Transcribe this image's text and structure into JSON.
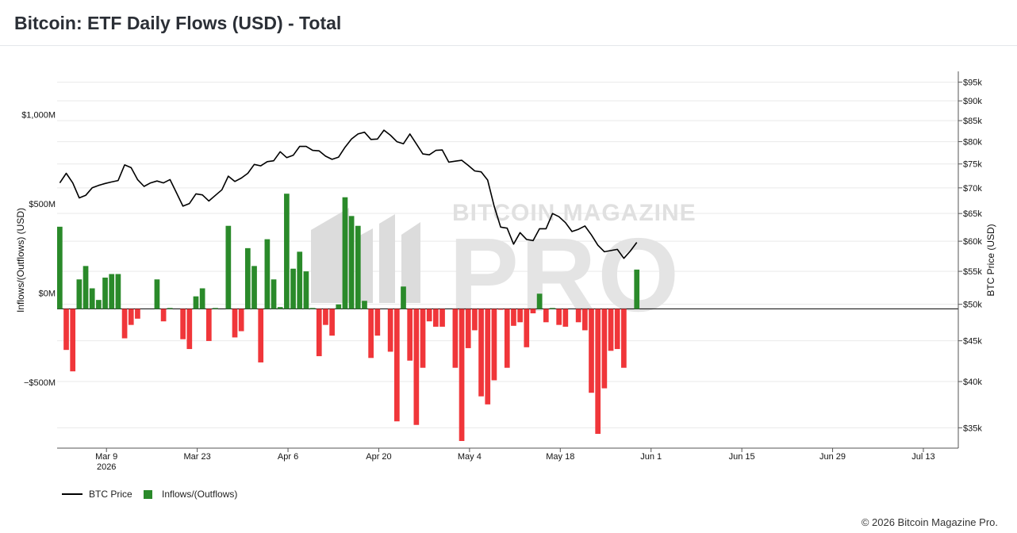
{
  "header": {
    "title": "Bitcoin: ETF Daily Flows (USD) - Total"
  },
  "footer": {
    "copyright": "© 2026 Bitcoin Magazine Pro."
  },
  "watermark": {
    "line1": "BITCOIN MAGAZINE",
    "line2": "PRO"
  },
  "colors": {
    "inflow": "#2a8a2a",
    "outflow": "#f0363a",
    "price": "#000000",
    "grid": "#e9e9e9",
    "watermark": "#dedede"
  },
  "chart_data": {
    "type": "bar",
    "y_left": {
      "label": "Inflows/(Outflows) (USD)",
      "range": [
        -780,
        1330
      ],
      "ticks": [
        {
          "value": -500,
          "label": "−$500M"
        },
        {
          "value": 0,
          "label": "$0M"
        },
        {
          "value": 500,
          "label": "$500M"
        },
        {
          "value": 1000,
          "label": "$1,000M"
        }
      ]
    },
    "y_right": {
      "label": "BTC Price (USD)",
      "scale": "log",
      "range": [
        33000,
        98000
      ],
      "ticks": [
        {
          "value": 35000,
          "label": "$35k"
        },
        {
          "value": 40000,
          "label": "$40k"
        },
        {
          "value": 45000,
          "label": "$45k"
        },
        {
          "value": 50000,
          "label": "$50k"
        },
        {
          "value": 55000,
          "label": "$55k"
        },
        {
          "value": 60000,
          "label": "$60k"
        },
        {
          "value": 65000,
          "label": "$65k"
        },
        {
          "value": 70000,
          "label": "$70k"
        },
        {
          "value": 75000,
          "label": "$75k"
        },
        {
          "value": 80000,
          "label": "$80k"
        },
        {
          "value": 85000,
          "label": "$85k"
        },
        {
          "value": 90000,
          "label": "$90k"
        },
        {
          "value": 95000,
          "label": "$95k"
        }
      ]
    },
    "x": {
      "start": "2026-03-02",
      "end": "2026-07-19",
      "ticks": [
        {
          "date": "2026-03-09",
          "label": "Mar 9",
          "sublabel": "2026"
        },
        {
          "date": "2026-03-23",
          "label": "Mar 23"
        },
        {
          "date": "2026-04-06",
          "label": "Apr 6"
        },
        {
          "date": "2026-04-20",
          "label": "Apr 20"
        },
        {
          "date": "2026-05-04",
          "label": "May 4"
        },
        {
          "date": "2026-05-18",
          "label": "May 18"
        },
        {
          "date": "2026-06-01",
          "label": "Jun 1"
        },
        {
          "date": "2026-06-15",
          "label": "Jun 15"
        },
        {
          "date": "2026-06-29",
          "label": "Jun 29"
        },
        {
          "date": "2026-07-13",
          "label": "Jul 13"
        }
      ]
    },
    "series": [
      {
        "name": "Inflows/(Outflows)",
        "type": "bar",
        "points": [
          [
            "2026-03-02",
            460
          ],
          [
            "2026-03-03",
            -230
          ],
          [
            "2026-03-04",
            -350
          ],
          [
            "2026-03-05",
            165
          ],
          [
            "2026-03-06",
            240
          ],
          [
            "2026-03-07",
            115
          ],
          [
            "2026-03-08",
            50
          ],
          [
            "2026-03-09",
            175
          ],
          [
            "2026-03-10",
            195
          ],
          [
            "2026-03-11",
            195
          ],
          [
            "2026-03-12",
            -165
          ],
          [
            "2026-03-13",
            -90
          ],
          [
            "2026-03-14",
            -55
          ],
          [
            "2026-03-17",
            165
          ],
          [
            "2026-03-18",
            -70
          ],
          [
            "2026-03-19",
            5
          ],
          [
            "2026-03-21",
            -170
          ],
          [
            "2026-03-22",
            -225
          ],
          [
            "2026-03-23",
            70
          ],
          [
            "2026-03-24",
            115
          ],
          [
            "2026-03-25",
            -180
          ],
          [
            "2026-03-26",
            5
          ],
          [
            "2026-03-28",
            465
          ],
          [
            "2026-03-29",
            -160
          ],
          [
            "2026-03-30",
            -125
          ],
          [
            "2026-03-31",
            340
          ],
          [
            "2026-04-01",
            240
          ],
          [
            "2026-04-02",
            -300
          ],
          [
            "2026-04-03",
            390
          ],
          [
            "2026-04-04",
            165
          ],
          [
            "2026-04-05",
            10
          ],
          [
            "2026-04-06",
            645
          ],
          [
            "2026-04-07",
            225
          ],
          [
            "2026-04-08",
            320
          ],
          [
            "2026-04-09",
            210
          ],
          [
            "2026-04-10",
            5
          ],
          [
            "2026-04-11",
            -265
          ],
          [
            "2026-04-12",
            -90
          ],
          [
            "2026-04-13",
            -150
          ],
          [
            "2026-04-14",
            25
          ],
          [
            "2026-04-15",
            625
          ],
          [
            "2026-04-16",
            520
          ],
          [
            "2026-04-17",
            465
          ],
          [
            "2026-04-18",
            45
          ],
          [
            "2026-04-19",
            -275
          ],
          [
            "2026-04-20",
            -150
          ],
          [
            "2026-04-22",
            -240
          ],
          [
            "2026-04-23",
            -630
          ],
          [
            "2026-04-24",
            125
          ],
          [
            "2026-04-25",
            -290
          ],
          [
            "2026-04-26",
            -650
          ],
          [
            "2026-04-27",
            -330
          ],
          [
            "2026-04-28",
            -70
          ],
          [
            "2026-04-29",
            -100
          ],
          [
            "2026-04-30",
            -100
          ],
          [
            "2026-05-02",
            -330
          ],
          [
            "2026-05-03",
            -740
          ],
          [
            "2026-05-04",
            -220
          ],
          [
            "2026-05-05",
            -120
          ],
          [
            "2026-05-06",
            -490
          ],
          [
            "2026-05-07",
            -535
          ],
          [
            "2026-05-08",
            -400
          ],
          [
            "2026-05-09",
            -5
          ],
          [
            "2026-05-10",
            -330
          ],
          [
            "2026-05-11",
            -95
          ],
          [
            "2026-05-12",
            -75
          ],
          [
            "2026-05-13",
            -215
          ],
          [
            "2026-05-14",
            -25
          ],
          [
            "2026-05-15",
            85
          ],
          [
            "2026-05-16",
            -75
          ],
          [
            "2026-05-17",
            5
          ],
          [
            "2026-05-18",
            -90
          ],
          [
            "2026-05-19",
            -100
          ],
          [
            "2026-05-21",
            -75
          ],
          [
            "2026-05-22",
            -120
          ],
          [
            "2026-05-23",
            -470
          ],
          [
            "2026-05-24",
            -700
          ],
          [
            "2026-05-25",
            -445
          ],
          [
            "2026-05-26",
            -235
          ],
          [
            "2026-05-27",
            -225
          ],
          [
            "2026-05-28",
            -330
          ],
          [
            "2026-05-30",
            220
          ]
        ]
      },
      {
        "name": "BTC Price",
        "type": "line",
        "points": [
          [
            "2026-03-02",
            71000
          ],
          [
            "2026-03-03",
            73000
          ],
          [
            "2026-03-04",
            71000
          ],
          [
            "2026-03-05",
            68000
          ],
          [
            "2026-03-06",
            68500
          ],
          [
            "2026-03-07",
            70000
          ],
          [
            "2026-03-08",
            70500
          ],
          [
            "2026-03-09",
            70900
          ],
          [
            "2026-03-10",
            71200
          ],
          [
            "2026-03-11",
            71500
          ],
          [
            "2026-03-12",
            74800
          ],
          [
            "2026-03-13",
            74200
          ],
          [
            "2026-03-14",
            71700
          ],
          [
            "2026-03-15",
            70300
          ],
          [
            "2026-03-16",
            71000
          ],
          [
            "2026-03-17",
            71400
          ],
          [
            "2026-03-18",
            71000
          ],
          [
            "2026-03-19",
            71700
          ],
          [
            "2026-03-20",
            69000
          ],
          [
            "2026-03-21",
            66400
          ],
          [
            "2026-03-22",
            66900
          ],
          [
            "2026-03-23",
            68800
          ],
          [
            "2026-03-24",
            68600
          ],
          [
            "2026-03-25",
            67400
          ],
          [
            "2026-03-26",
            68500
          ],
          [
            "2026-03-27",
            69600
          ],
          [
            "2026-03-28",
            72400
          ],
          [
            "2026-03-29",
            71300
          ],
          [
            "2026-03-30",
            72000
          ],
          [
            "2026-03-31",
            73000
          ],
          [
            "2026-04-01",
            74900
          ],
          [
            "2026-04-02",
            74600
          ],
          [
            "2026-04-03",
            75500
          ],
          [
            "2026-04-04",
            75700
          ],
          [
            "2026-04-05",
            77700
          ],
          [
            "2026-04-06",
            76400
          ],
          [
            "2026-04-07",
            76900
          ],
          [
            "2026-04-08",
            78900
          ],
          [
            "2026-04-09",
            78900
          ],
          [
            "2026-04-10",
            78000
          ],
          [
            "2026-04-11",
            77900
          ],
          [
            "2026-04-12",
            76700
          ],
          [
            "2026-04-13",
            76000
          ],
          [
            "2026-04-14",
            76500
          ],
          [
            "2026-04-15",
            78700
          ],
          [
            "2026-04-16",
            80600
          ],
          [
            "2026-04-17",
            81800
          ],
          [
            "2026-04-18",
            82200
          ],
          [
            "2026-04-19",
            80500
          ],
          [
            "2026-04-20",
            80600
          ],
          [
            "2026-04-21",
            82700
          ],
          [
            "2026-04-22",
            81500
          ],
          [
            "2026-04-23",
            80000
          ],
          [
            "2026-04-24",
            79500
          ],
          [
            "2026-04-25",
            81800
          ],
          [
            "2026-04-26",
            79500
          ],
          [
            "2026-04-27",
            77200
          ],
          [
            "2026-04-28",
            77000
          ],
          [
            "2026-04-29",
            78000
          ],
          [
            "2026-04-30",
            78100
          ],
          [
            "2026-05-01",
            75400
          ],
          [
            "2026-05-02",
            75600
          ],
          [
            "2026-05-03",
            75800
          ],
          [
            "2026-05-04",
            74700
          ],
          [
            "2026-05-05",
            73500
          ],
          [
            "2026-05-06",
            73300
          ],
          [
            "2026-05-07",
            71600
          ],
          [
            "2026-05-08",
            66400
          ],
          [
            "2026-05-09",
            62500
          ],
          [
            "2026-05-10",
            62300
          ],
          [
            "2026-05-11",
            59500
          ],
          [
            "2026-05-12",
            61500
          ],
          [
            "2026-05-13",
            60300
          ],
          [
            "2026-05-14",
            60100
          ],
          [
            "2026-05-15",
            62200
          ],
          [
            "2026-05-16",
            62200
          ],
          [
            "2026-05-17",
            65000
          ],
          [
            "2026-05-18",
            64400
          ],
          [
            "2026-05-19",
            63300
          ],
          [
            "2026-05-20",
            61700
          ],
          [
            "2026-05-21",
            62100
          ],
          [
            "2026-05-22",
            62700
          ],
          [
            "2026-05-23",
            61100
          ],
          [
            "2026-05-24",
            59300
          ],
          [
            "2026-05-25",
            58200
          ],
          [
            "2026-05-26",
            58400
          ],
          [
            "2026-05-27",
            58600
          ],
          [
            "2026-05-28",
            57100
          ],
          [
            "2026-05-29",
            58300
          ],
          [
            "2026-05-30",
            59800
          ]
        ]
      }
    ],
    "legend": {
      "position": "bottom-left",
      "items": [
        {
          "label": "BTC Price",
          "marker": "line",
          "color": "#000000"
        },
        {
          "label": "Inflows/(Outflows)",
          "marker": "square",
          "color": "#2a8a2a"
        }
      ]
    },
    "grid": true
  }
}
